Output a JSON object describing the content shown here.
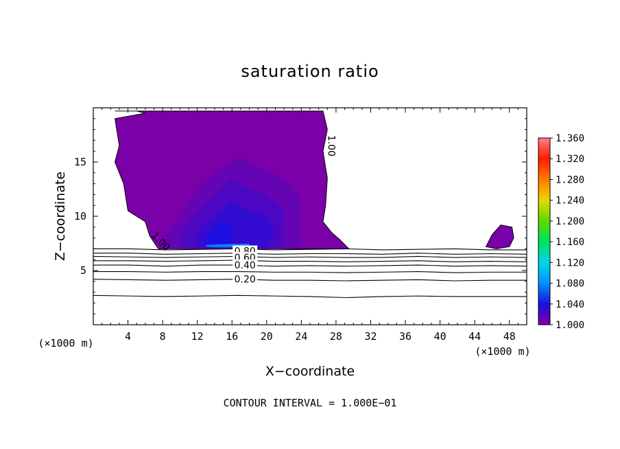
{
  "chart_data": {
    "type": "contour",
    "title": "saturation ratio",
    "xlabel": "X−coordinate",
    "ylabel": "Z−coordinate",
    "x_unit_left": "(×1000 m)",
    "x_unit_right": "(×1000 m)",
    "footer": "CONTOUR INTERVAL = 1.000E−01",
    "x_ticks": [
      "4",
      "8",
      "12",
      "16",
      "20",
      "24",
      "28",
      "32",
      "36",
      "40",
      "44",
      "48"
    ],
    "x_tick_values": [
      4,
      8,
      12,
      16,
      20,
      24,
      28,
      32,
      36,
      40,
      44,
      48
    ],
    "y_ticks": [
      "5",
      "10",
      "15"
    ],
    "y_tick_values": [
      5,
      10,
      15
    ],
    "xlim": [
      0,
      50
    ],
    "ylim": [
      0,
      20
    ],
    "colorbar": {
      "labels": [
        "1.360",
        "1.320",
        "1.280",
        "1.240",
        "1.200",
        "1.160",
        "1.120",
        "1.080",
        "1.040",
        "1.000"
      ],
      "values": [
        1.36,
        1.32,
        1.28,
        1.24,
        1.2,
        1.16,
        1.12,
        1.08,
        1.04,
        1.0
      ],
      "colors": [
        "#ff8080",
        "#ff1a00",
        "#ff7a00",
        "#e8d800",
        "#5cdc00",
        "#00e060",
        "#00d8e8",
        "#0090ff",
        "#1a10e0",
        "#7a00a8"
      ]
    },
    "contour_labels": [
      {
        "text": "1.00",
        "x": 27.5,
        "y": 16.5
      },
      {
        "text": "1.00",
        "x": 7.8,
        "y": 7.7
      },
      {
        "text": "0.80",
        "x": 17.5,
        "y": 6.8
      },
      {
        "text": "0.60",
        "x": 17.5,
        "y": 6.2
      },
      {
        "text": "0.40",
        "x": 17.5,
        "y": 5.5
      },
      {
        "text": "0.20",
        "x": 17.5,
        "y": 4.2
      }
    ],
    "contour_lines": [
      {
        "level": 0.9,
        "y": [
          7.0,
          7.0,
          6.9,
          6.95,
          7.0,
          6.9,
          6.95,
          7.0,
          6.9,
          6.95,
          7.0,
          6.9,
          6.9
        ]
      },
      {
        "level": 0.8,
        "y": [
          6.6,
          6.6,
          6.5,
          6.55,
          6.6,
          6.5,
          6.55,
          6.55,
          6.5,
          6.6,
          6.5,
          6.55,
          6.5
        ]
      },
      {
        "level": 0.7,
        "y": [
          6.3,
          6.25,
          6.2,
          6.25,
          6.3,
          6.2,
          6.25,
          6.2,
          6.2,
          6.3,
          6.2,
          6.25,
          6.2
        ]
      },
      {
        "level": 0.6,
        "y": [
          5.9,
          5.9,
          5.85,
          5.9,
          5.95,
          5.85,
          5.85,
          5.8,
          5.85,
          5.9,
          5.8,
          5.85,
          5.8
        ]
      },
      {
        "level": 0.5,
        "y": [
          5.5,
          5.5,
          5.4,
          5.5,
          5.5,
          5.4,
          5.45,
          5.4,
          5.45,
          5.5,
          5.4,
          5.45,
          5.4
        ]
      },
      {
        "level": 0.4,
        "y": [
          4.9,
          4.9,
          4.85,
          4.9,
          4.9,
          4.85,
          4.85,
          4.8,
          4.85,
          4.9,
          4.8,
          4.85,
          4.85
        ]
      },
      {
        "level": 0.2,
        "y": [
          4.2,
          4.15,
          4.1,
          4.15,
          4.2,
          4.1,
          4.1,
          4.05,
          4.1,
          4.15,
          4.05,
          4.1,
          4.1
        ]
      },
      {
        "level": 0.1,
        "y": [
          2.7,
          2.65,
          2.6,
          2.65,
          2.7,
          2.65,
          2.6,
          2.5,
          2.6,
          2.65,
          2.6,
          2.6,
          2.6
        ]
      }
    ],
    "supersaturated_regions": [
      {
        "value": 1.0,
        "x": [
          2.5,
          5,
          6,
          2.5,
          3,
          2.5,
          3.5,
          4,
          6,
          6.5,
          7.5,
          29.5,
          28.5,
          27.5,
          26.5,
          26.8,
          27,
          26.5,
          27,
          26.5
        ],
        "y": [
          19.7,
          19.7,
          19.5,
          19.0,
          16.5,
          15.0,
          13.0,
          10.5,
          9.5,
          8.2,
          7.0,
          7.0,
          7.8,
          8.5,
          9.5,
          11.0,
          13.5,
          16.0,
          18.0,
          19.7
        ]
      },
      {
        "value": 1.0,
        "x": [
          45.3,
          46,
          47,
          48.3,
          48.5,
          48,
          46.5,
          45.3
        ],
        "y": [
          7.2,
          8.3,
          9.2,
          9.0,
          8.0,
          7.2,
          7.0,
          7.2
        ]
      }
    ],
    "shading_layers": [
      {
        "value": 1.01,
        "x": [
          8,
          10,
          13,
          15,
          17,
          19,
          22,
          24,
          24,
          22,
          19,
          17,
          14,
          12,
          10,
          8
        ],
        "y": [
          7.0,
          7.0,
          7.0,
          7.0,
          7.0,
          7.0,
          7.0,
          7.2,
          11.5,
          13.5,
          14.5,
          15.5,
          14.0,
          12.5,
          10.0,
          8.0
        ]
      },
      {
        "value": 1.02,
        "x": [
          10,
          12,
          14,
          16,
          18,
          20,
          22,
          22,
          20,
          18,
          16,
          14,
          12,
          10
        ],
        "y": [
          7.1,
          7.1,
          7.1,
          7.1,
          7.1,
          7.1,
          7.1,
          10.5,
          12.0,
          12.5,
          13.5,
          12.0,
          10.5,
          8.5
        ]
      },
      {
        "value": 1.03,
        "x": [
          12,
          14,
          16,
          18,
          20,
          21,
          20,
          18,
          16,
          14,
          12
        ],
        "y": [
          7.1,
          7.1,
          7.1,
          7.1,
          7.1,
          8.5,
          10.0,
          10.5,
          11.5,
          10.0,
          8.5
        ]
      },
      {
        "value": 1.05,
        "x": [
          13,
          14,
          15,
          16,
          16,
          15,
          14,
          13
        ],
        "y": [
          7.2,
          7.2,
          7.2,
          7.2,
          8.8,
          9.8,
          9.0,
          8.0
        ]
      },
      {
        "value": 1.08,
        "x": [
          13,
          14,
          16,
          18,
          18,
          16,
          14,
          13
        ],
        "y": [
          7.2,
          7.15,
          7.15,
          7.2,
          7.45,
          7.45,
          7.4,
          7.35
        ]
      }
    ]
  }
}
